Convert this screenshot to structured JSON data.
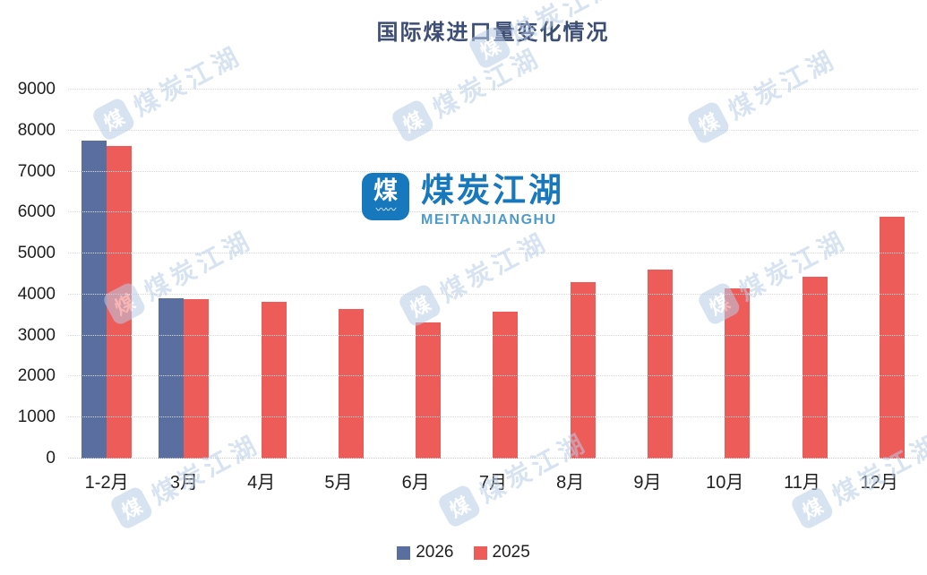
{
  "title": "国际煤进口量变化情况",
  "logo": {
    "icon_char": "煤",
    "icon_wave": "〰〰",
    "name": "煤炭江湖",
    "subtitle": "MEITANJIANGHU"
  },
  "watermark": {
    "icon_char": "煤",
    "text": "煤炭江湖"
  },
  "legend": [
    {
      "label": "2026",
      "color": "#5A6EA0"
    },
    {
      "label": "2025",
      "color": "#EE5C5A"
    }
  ],
  "colors": {
    "series_2026": "#5A6EA0",
    "series_2025": "#EE5C5A",
    "title_text": "#3D4E75",
    "axis_text": "#1F1F1F",
    "gridline": "#D9D9D9",
    "logo_blue": "#1878BE",
    "logo_sub_blue": "#4D9BCC",
    "watermark_blue": "#B9CDE6"
  },
  "chart_data": {
    "type": "bar",
    "title": "国际煤进口量变化情况",
    "categories": [
      "1-2月",
      "3月",
      "4月",
      "5月",
      "6月",
      "7月",
      "8月",
      "9月",
      "10月",
      "11月",
      "12月"
    ],
    "series": [
      {
        "name": "2026",
        "color": "#5A6EA0",
        "values": [
          7745,
          3920,
          null,
          null,
          null,
          null,
          null,
          null,
          null,
          null,
          null
        ]
      },
      {
        "name": "2025",
        "color": "#EE5C5A",
        "values": [
          7620,
          3880,
          3830,
          3640,
          3330,
          3590,
          4300,
          4600,
          4150,
          4440,
          5890
        ]
      }
    ],
    "xlabel": "",
    "ylabel": "",
    "ylim": [
      0,
      9000
    ],
    "ytick_interval": 1000,
    "yticks": [
      "0",
      "1000",
      "2000",
      "3000",
      "4000",
      "5000",
      "6000",
      "7000",
      "8000",
      "9000"
    ],
    "grid": "horizontal-dotted",
    "legend_position": "bottom"
  }
}
